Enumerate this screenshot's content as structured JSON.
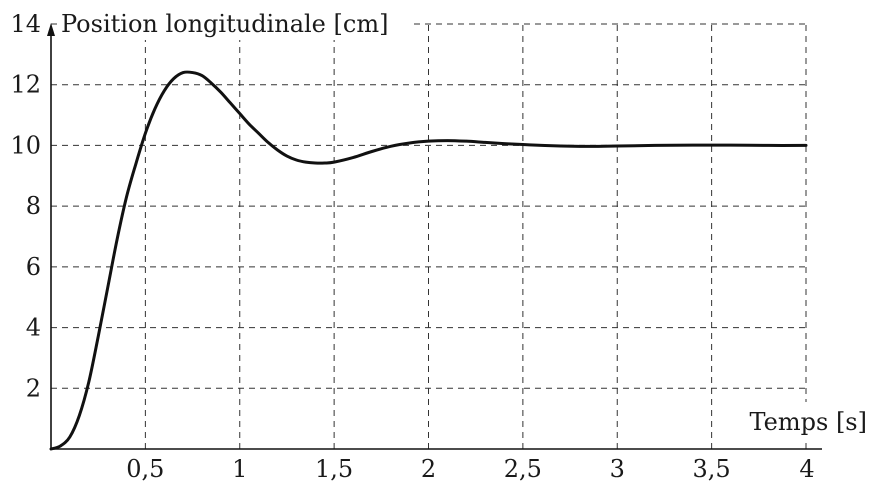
{
  "chart_data": {
    "type": "line",
    "title": "",
    "ylabel": "Position longitudinale [cm]",
    "xlabel": "Temps [s]",
    "xlim": [
      0,
      4
    ],
    "ylim": [
      0,
      14
    ],
    "grid": true,
    "x_ticks": [
      "0,5",
      "1",
      "1,5",
      "2",
      "2,5",
      "3",
      "3,5",
      "4"
    ],
    "x_tick_values": [
      0.5,
      1,
      1.5,
      2,
      2.5,
      3,
      3.5,
      4
    ],
    "y_ticks": [
      "2",
      "4",
      "6",
      "8",
      "10",
      "12",
      "14"
    ],
    "y_tick_values": [
      2,
      4,
      6,
      8,
      10,
      12,
      14
    ],
    "series": [
      {
        "x": [
          0,
          0.05,
          0.1,
          0.15,
          0.2,
          0.25,
          0.3,
          0.35,
          0.4,
          0.45,
          0.5,
          0.55,
          0.6,
          0.65,
          0.7,
          0.75,
          0.8,
          0.85,
          0.9,
          0.95,
          1.0,
          1.05,
          1.1,
          1.15,
          1.2,
          1.25,
          1.3,
          1.35,
          1.4,
          1.45,
          1.5,
          1.6,
          1.7,
          1.8,
          1.9,
          2.0,
          2.1,
          2.2,
          2.3,
          2.4,
          2.5,
          2.6,
          2.7,
          2.8,
          2.9,
          3.0,
          3.2,
          3.4,
          3.6,
          3.8,
          4.0
        ],
        "values": [
          0,
          0.1,
          0.4,
          1.1,
          2.2,
          3.7,
          5.3,
          6.9,
          8.3,
          9.4,
          10.4,
          11.2,
          11.8,
          12.2,
          12.4,
          12.4,
          12.3,
          12.05,
          11.75,
          11.4,
          11.05,
          10.7,
          10.4,
          10.1,
          9.85,
          9.65,
          9.52,
          9.45,
          9.42,
          9.42,
          9.45,
          9.6,
          9.8,
          9.97,
          10.08,
          10.14,
          10.16,
          10.14,
          10.1,
          10.06,
          10.03,
          10.0,
          9.98,
          9.97,
          9.97,
          9.98,
          10.0,
          10.01,
          10.01,
          10.0,
          10.0
        ]
      }
    ]
  }
}
